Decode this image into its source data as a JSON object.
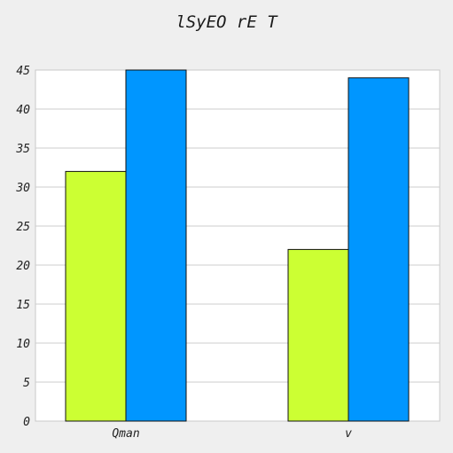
{
  "chart_data": {
    "type": "bar",
    "title": "lSyEO rE T",
    "xlabel": "",
    "ylabel": "",
    "categories": [
      "Qman",
      "v"
    ],
    "series": [
      {
        "color": "#ccff33",
        "values": [
          32,
          22
        ]
      },
      {
        "color": "#0096ff",
        "values": [
          45,
          44
        ]
      }
    ],
    "ylim": [
      0,
      45
    ],
    "yticks": [
      0,
      5,
      10,
      15,
      20,
      25,
      30,
      35,
      40,
      45
    ],
    "grid": true,
    "legend": "none"
  }
}
